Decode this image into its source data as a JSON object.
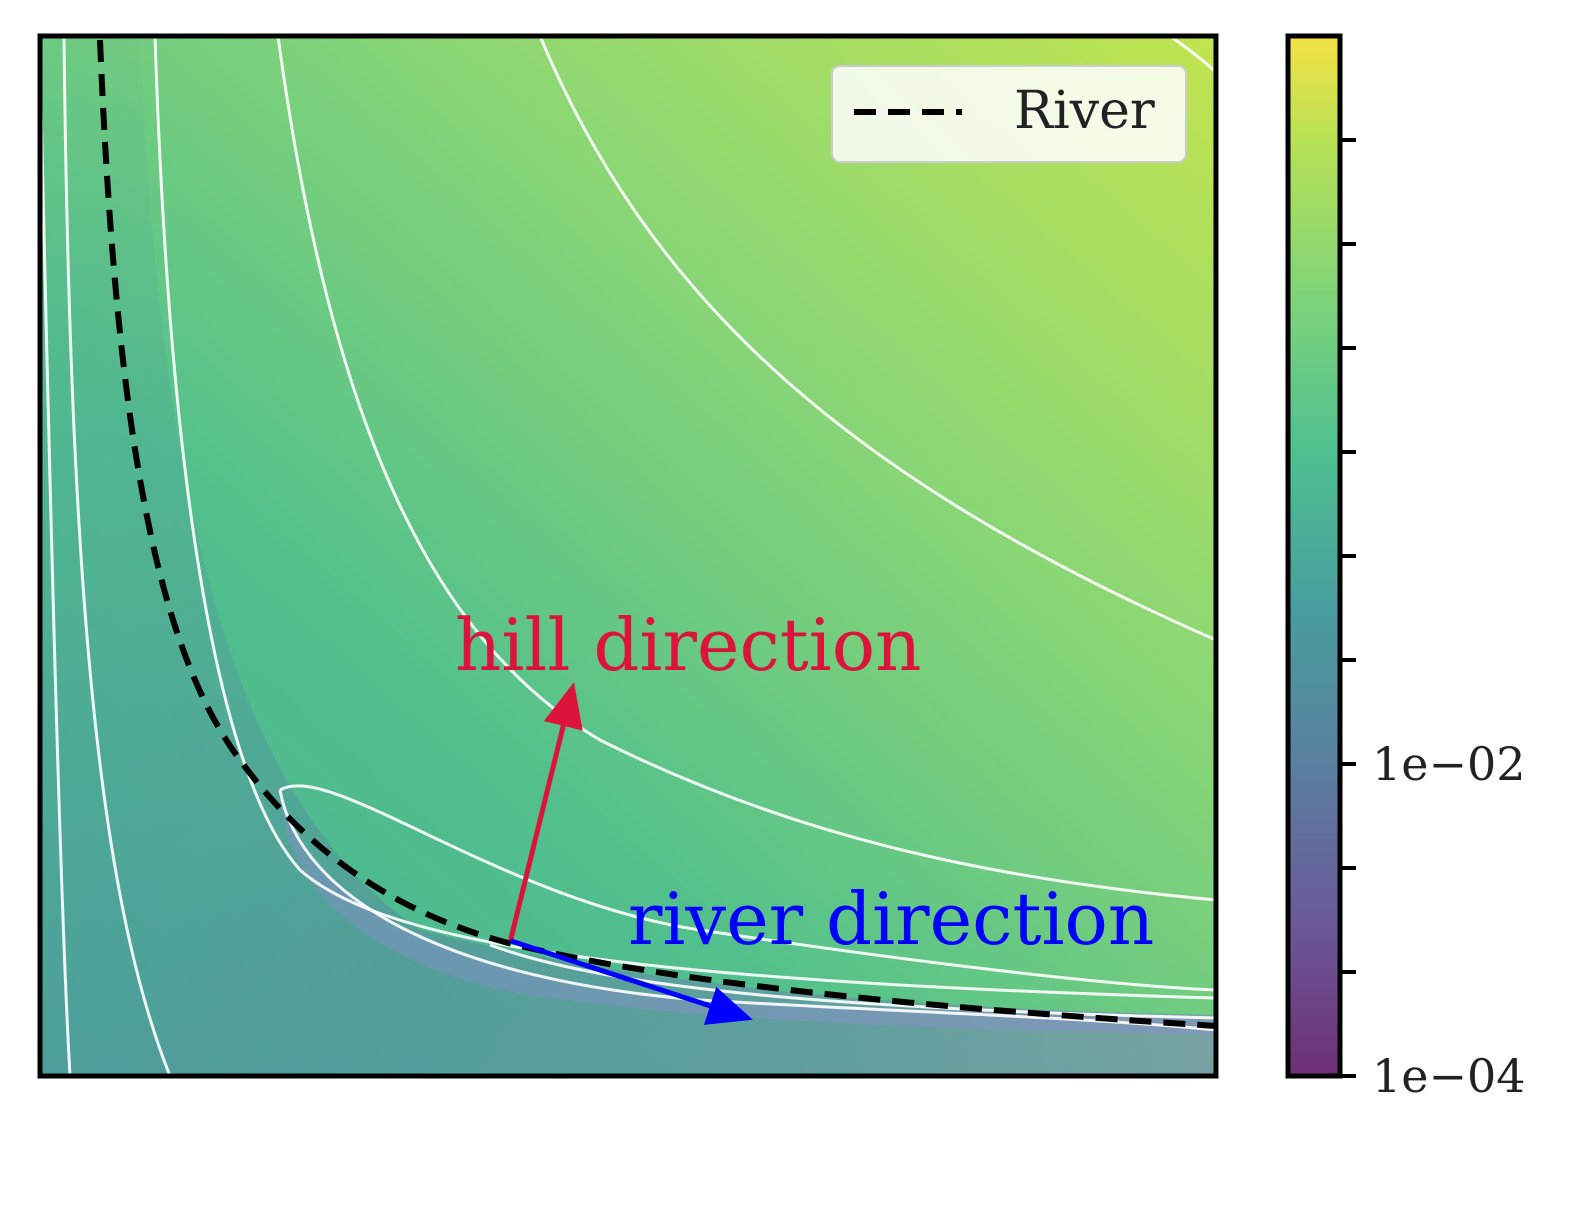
{
  "chart_data": {
    "type": "contour",
    "title": "",
    "xlabel": "",
    "ylabel": "",
    "grid": false,
    "legend": {
      "placement": "top-right",
      "entries": [
        {
          "label": "River",
          "style": "dashed",
          "color": "#000000"
        }
      ]
    },
    "river": {
      "name": "River",
      "style": "dashed",
      "points": [
        [
          0.05,
          1.0
        ],
        [
          0.09,
          0.62
        ],
        [
          0.16,
          0.33
        ],
        [
          0.24,
          0.23
        ],
        [
          0.4,
          0.13
        ],
        [
          0.62,
          0.08
        ],
        [
          1.0,
          0.05
        ]
      ]
    },
    "contours": {
      "line_color": "#ffffff",
      "levels": 9
    },
    "colorbar": {
      "colormap": "viridis",
      "scale": "log",
      "tick_labels": [
        "1e−04",
        "1e−02"
      ],
      "label_positions": [
        0.0,
        0.3
      ],
      "minor_tick_positions": [
        0.0,
        0.1,
        0.2,
        0.3,
        0.4,
        0.5,
        0.6,
        0.7,
        0.8,
        0.9
      ]
    },
    "annotations": [
      {
        "text": "hill direction",
        "color": "#dc143c"
      },
      {
        "text": "river direction",
        "color": "#0000ff"
      }
    ],
    "arrows": [
      {
        "name": "hill",
        "color": "#dc143c",
        "from": [
          0.4,
          0.13
        ],
        "to": [
          0.45,
          0.36
        ]
      },
      {
        "name": "river",
        "color": "#0000ff",
        "from": [
          0.4,
          0.13
        ],
        "to": [
          0.59,
          0.06
        ]
      }
    ]
  }
}
